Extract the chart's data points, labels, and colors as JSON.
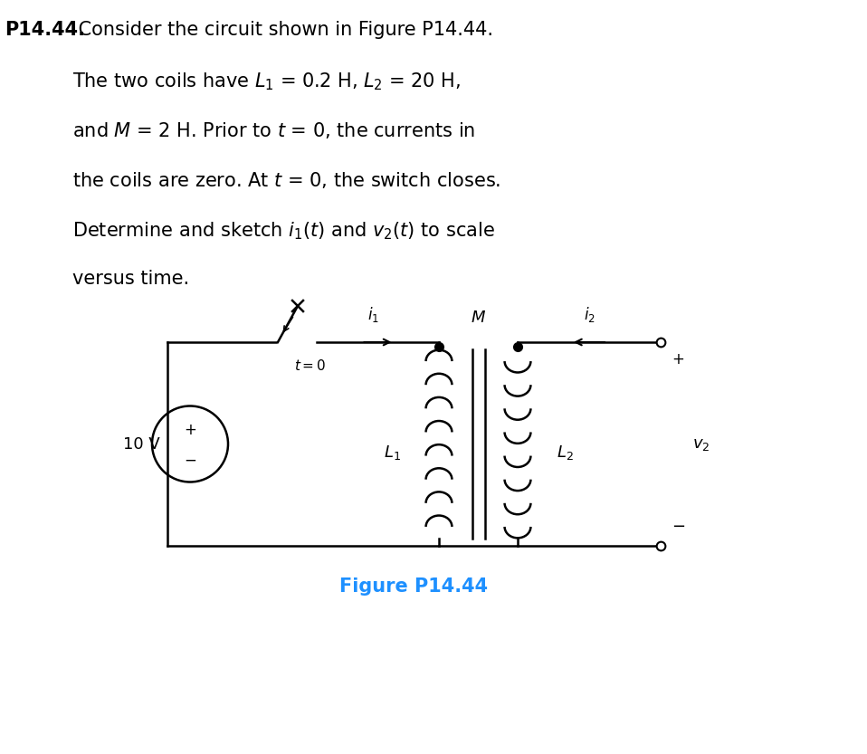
{
  "background_color": "#ffffff",
  "text_color": "#000000",
  "figure_caption_color": "#1E90FF",
  "title_bold": "P14.44.",
  "line1_rest": " Consider the circuit shown in Figure P14.44.",
  "line2": "The two coils have $L_1$ = 0.2 H, $L_2$ = 20 H,",
  "line3": "and $M$ = 2 H. Prior to $t$ = 0, the currents in",
  "line4": "the coils are zero. At $t$ = 0, the switch closes.",
  "line5": "Determine and sketch $i_1(t)$ and $v_2(t)$ to scale",
  "line6": "versus time.",
  "figure_caption": "Figure P14.44",
  "voltage_label": "10 V",
  "L1_label": "$L_1$",
  "L2_label": "$L_2$",
  "M_label": "$M$",
  "i1_label": "$i_1$",
  "i2_label": "$i_2$",
  "v2_label": "$v_2$",
  "t0_label": "$t=0$",
  "wire_color": "#000000",
  "dot_color": "#000000",
  "fontsize_body": 15,
  "fontsize_circuit": 13
}
